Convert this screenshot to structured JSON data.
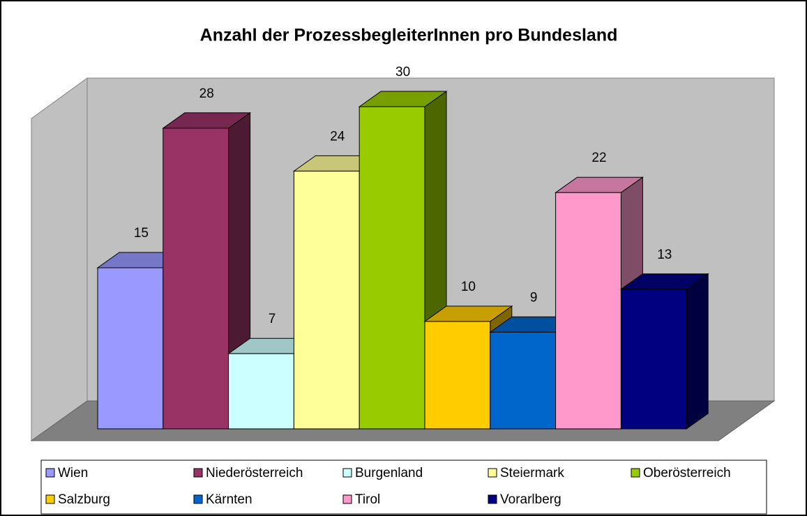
{
  "chart_data": {
    "type": "bar",
    "title": "Anzahl der ProzessbegleiterInnen pro Bundesland",
    "series": [
      {
        "name": "Wien",
        "color": "#9999ff",
        "values": [
          15
        ]
      },
      {
        "name": "Niederösterreich",
        "color": "#993366",
        "values": [
          28
        ]
      },
      {
        "name": "Burgenland",
        "color": "#ccffff",
        "values": [
          7
        ]
      },
      {
        "name": "Steiermark",
        "color": "#ffff99",
        "values": [
          24
        ]
      },
      {
        "name": "Oberösterreich",
        "color": "#99cc00",
        "values": [
          30
        ]
      },
      {
        "name": "Salzburg",
        "color": "#ffcc00",
        "values": [
          10
        ]
      },
      {
        "name": "Kärnten",
        "color": "#0066cc",
        "values": [
          9
        ]
      },
      {
        "name": "Tirol",
        "color": "#ff99cc",
        "values": [
          22
        ]
      },
      {
        "name": "Vorarlberg",
        "color": "#000080",
        "values": [
          13
        ]
      }
    ]
  }
}
